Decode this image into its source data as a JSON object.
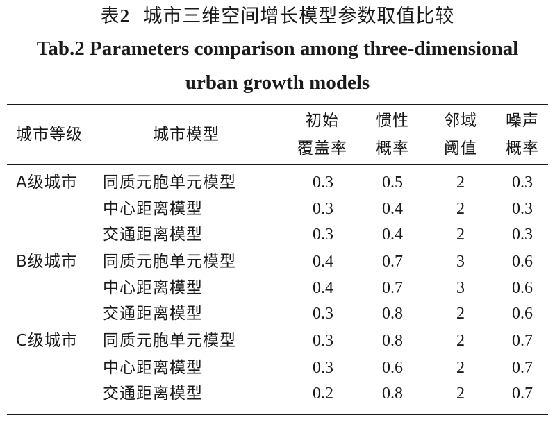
{
  "caption": {
    "cn_label": "表",
    "cn_number": "2",
    "cn_title": "城市三维空间增长模型参数取值比较",
    "en_line1": "Tab.2   Parameters comparison among three-dimensional",
    "en_line2": "urban growth models"
  },
  "table": {
    "headers": {
      "city_level": "城市等级",
      "model": "城市模型",
      "init_coverage": [
        "初始",
        "覆盖率"
      ],
      "inertia": [
        "惯性",
        "概率"
      ],
      "neighborhood": [
        "邻域",
        "阈值"
      ],
      "noise": [
        "噪声",
        "概率"
      ]
    },
    "rows": [
      {
        "level": "A级城市",
        "model": "同质元胞单元模型",
        "init": "0.3",
        "inertia": "0.5",
        "threshold": "2",
        "noise": "0.3"
      },
      {
        "level": "",
        "model": "中心距离模型",
        "init": "0.3",
        "inertia": "0.4",
        "threshold": "2",
        "noise": "0.3"
      },
      {
        "level": "",
        "model": "交通距离模型",
        "init": "0.3",
        "inertia": "0.4",
        "threshold": "2",
        "noise": "0.3"
      },
      {
        "level": "B级城市",
        "model": "同质元胞单元模型",
        "init": "0.4",
        "inertia": "0.7",
        "threshold": "3",
        "noise": "0.6"
      },
      {
        "level": "",
        "model": "中心距离模型",
        "init": "0.4",
        "inertia": "0.7",
        "threshold": "3",
        "noise": "0.6"
      },
      {
        "level": "",
        "model": "交通距离模型",
        "init": "0.3",
        "inertia": "0.8",
        "threshold": "2",
        "noise": "0.6"
      },
      {
        "level": "C级城市",
        "model": "同质元胞单元模型",
        "init": "0.3",
        "inertia": "0.8",
        "threshold": "2",
        "noise": "0.7"
      },
      {
        "level": "",
        "model": "中心距离模型",
        "init": "0.3",
        "inertia": "0.6",
        "threshold": "2",
        "noise": "0.7"
      },
      {
        "level": "",
        "model": "交通距离模型",
        "init": "0.2",
        "inertia": "0.8",
        "threshold": "2",
        "noise": "0.7"
      }
    ]
  }
}
